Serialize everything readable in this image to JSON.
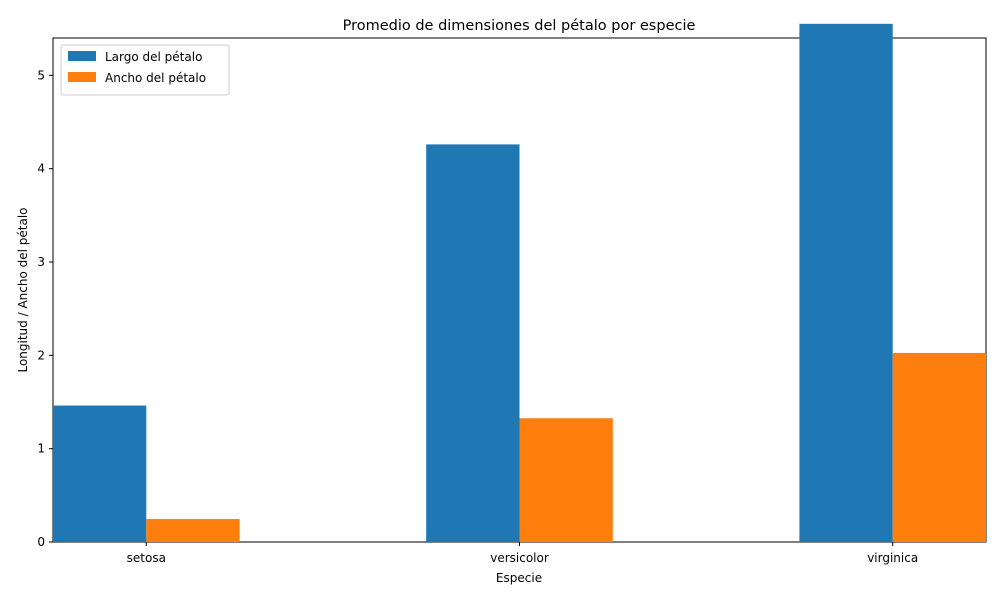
{
  "chart_data": {
    "type": "bar",
    "title": "Promedio de dimensiones del pétalo por especie",
    "xlabel": "Especie",
    "ylabel": "Longitud / Ancho del pétalo",
    "categories": [
      "setosa",
      "versicolor",
      "virginica"
    ],
    "series": [
      {
        "name": "Largo del pétalo",
        "color": "#1f77b4",
        "values": [
          1.462,
          4.26,
          5.552
        ]
      },
      {
        "name": "Ancho del pétalo",
        "color": "#ff7f0e",
        "values": [
          0.246,
          1.326,
          2.026
        ]
      }
    ],
    "ylim": [
      0,
      5.4
    ],
    "yticks": [
      "0",
      "1",
      "2",
      "3",
      "4",
      "5"
    ],
    "legend": "top-left",
    "grid": false
  }
}
